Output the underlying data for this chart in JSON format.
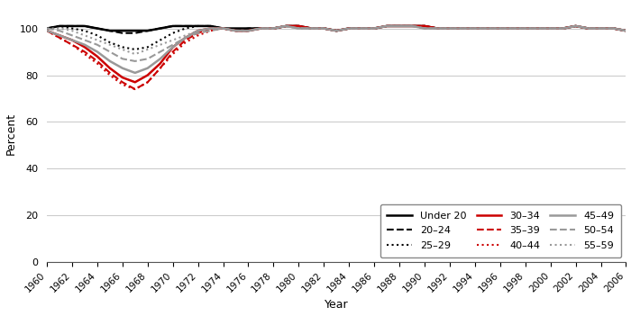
{
  "title": "",
  "ylabel": "Percent",
  "xlabel": "Year",
  "ylim": [
    0,
    110
  ],
  "yticks": [
    0,
    20,
    40,
    60,
    80,
    100
  ],
  "years": [
    1960,
    1961,
    1962,
    1963,
    1964,
    1965,
    1966,
    1967,
    1968,
    1969,
    1970,
    1971,
    1972,
    1973,
    1974,
    1975,
    1976,
    1977,
    1978,
    1979,
    1980,
    1981,
    1982,
    1983,
    1984,
    1985,
    1986,
    1987,
    1988,
    1989,
    1990,
    1991,
    1992,
    1993,
    1994,
    1995,
    1996,
    1997,
    1998,
    1999,
    2000,
    2001,
    2002,
    2003,
    2004,
    2005,
    2006
  ],
  "series": {
    "Under 20": [
      100,
      101,
      101,
      101,
      100,
      99,
      99,
      99,
      99,
      100,
      101,
      101,
      101,
      101,
      100,
      100,
      100,
      100,
      100,
      101,
      101,
      100,
      100,
      99,
      100,
      100,
      100,
      101,
      101,
      101,
      101,
      100,
      100,
      100,
      100,
      100,
      100,
      100,
      100,
      100,
      100,
      100,
      101,
      100,
      100,
      100,
      99
    ],
    "20-24": [
      100,
      101,
      101,
      101,
      100,
      99,
      98,
      98,
      99,
      100,
      101,
      101,
      101,
      101,
      100,
      99,
      100,
      100,
      100,
      101,
      101,
      100,
      100,
      99,
      100,
      100,
      100,
      101,
      101,
      101,
      101,
      100,
      100,
      100,
      100,
      100,
      100,
      100,
      100,
      100,
      100,
      100,
      101,
      100,
      100,
      100,
      99
    ],
    "25-29": [
      100,
      101,
      100,
      99,
      97,
      94,
      92,
      91,
      92,
      95,
      98,
      100,
      101,
      101,
      100,
      99,
      99,
      100,
      100,
      101,
      101,
      100,
      100,
      99,
      100,
      100,
      100,
      101,
      101,
      101,
      101,
      100,
      100,
      100,
      100,
      100,
      100,
      100,
      100,
      100,
      100,
      100,
      101,
      100,
      100,
      100,
      99
    ],
    "30-34": [
      99,
      97,
      95,
      92,
      88,
      83,
      79,
      77,
      80,
      85,
      92,
      96,
      99,
      100,
      100,
      99,
      99,
      100,
      100,
      101,
      101,
      100,
      100,
      99,
      100,
      100,
      100,
      101,
      101,
      101,
      101,
      100,
      100,
      100,
      100,
      100,
      100,
      100,
      100,
      100,
      100,
      100,
      101,
      100,
      100,
      100,
      99
    ],
    "35-39": [
      99,
      96,
      93,
      90,
      86,
      81,
      77,
      74,
      77,
      83,
      90,
      95,
      98,
      100,
      100,
      99,
      99,
      100,
      100,
      101,
      101,
      100,
      100,
      99,
      100,
      100,
      100,
      101,
      101,
      101,
      101,
      100,
      100,
      100,
      100,
      100,
      100,
      100,
      100,
      100,
      100,
      100,
      101,
      100,
      100,
      100,
      99
    ],
    "40-44": [
      99,
      96,
      93,
      89,
      85,
      80,
      76,
      74,
      77,
      83,
      89,
      94,
      97,
      99,
      100,
      99,
      99,
      100,
      100,
      101,
      101,
      100,
      100,
      99,
      100,
      100,
      100,
      101,
      101,
      101,
      101,
      100,
      100,
      100,
      100,
      100,
      100,
      100,
      100,
      100,
      100,
      100,
      101,
      100,
      100,
      100,
      99
    ],
    "45-49": [
      99,
      97,
      95,
      93,
      90,
      86,
      83,
      81,
      83,
      87,
      92,
      96,
      99,
      100,
      100,
      99,
      99,
      100,
      100,
      101,
      100,
      100,
      100,
      99,
      100,
      100,
      100,
      101,
      101,
      101,
      100,
      100,
      100,
      100,
      100,
      100,
      100,
      100,
      100,
      100,
      100,
      100,
      101,
      100,
      100,
      100,
      99
    ],
    "50-54": [
      100,
      99,
      97,
      95,
      93,
      90,
      87,
      86,
      87,
      90,
      93,
      96,
      98,
      99,
      100,
      99,
      99,
      100,
      100,
      101,
      100,
      100,
      100,
      99,
      100,
      100,
      100,
      101,
      101,
      101,
      100,
      100,
      100,
      100,
      100,
      100,
      100,
      100,
      100,
      100,
      100,
      100,
      101,
      100,
      100,
      100,
      99
    ],
    "55-59": [
      100,
      100,
      99,
      97,
      95,
      93,
      91,
      89,
      91,
      93,
      95,
      97,
      99,
      100,
      100,
      99,
      99,
      100,
      100,
      101,
      100,
      100,
      100,
      99,
      100,
      100,
      100,
      101,
      101,
      101,
      100,
      100,
      100,
      100,
      100,
      100,
      100,
      100,
      100,
      100,
      100,
      100,
      101,
      100,
      100,
      100,
      99
    ]
  },
  "line_styles": {
    "Under 20": {
      "color": "#000000",
      "linestyle": "-",
      "linewidth": 1.8
    },
    "20-24": {
      "color": "#000000",
      "linestyle": "--",
      "linewidth": 1.5
    },
    "25-29": {
      "color": "#000000",
      "linestyle": ":",
      "linewidth": 1.5
    },
    "30-34": {
      "color": "#cc0000",
      "linestyle": "-",
      "linewidth": 1.8
    },
    "35-39": {
      "color": "#cc0000",
      "linestyle": "--",
      "linewidth": 1.5
    },
    "40-44": {
      "color": "#cc0000",
      "linestyle": ":",
      "linewidth": 1.5
    },
    "45-49": {
      "color": "#999999",
      "linestyle": "-",
      "linewidth": 1.8
    },
    "50-54": {
      "color": "#999999",
      "linestyle": "--",
      "linewidth": 1.5
    },
    "55-59": {
      "color": "#999999",
      "linestyle": ":",
      "linewidth": 1.5
    }
  },
  "xticks": [
    1960,
    1962,
    1964,
    1966,
    1968,
    1970,
    1972,
    1974,
    1976,
    1978,
    1980,
    1982,
    1984,
    1986,
    1988,
    1990,
    1992,
    1994,
    1996,
    1998,
    2000,
    2002,
    2004,
    2006
  ],
  "legend_rows": [
    [
      "Under 20",
      "20–24",
      "25–29"
    ],
    [
      "30–34",
      "35–39",
      "40–44"
    ],
    [
      "45–49",
      "50–54",
      "55–59"
    ]
  ],
  "legend_keys": [
    [
      "Under 20",
      "20-24",
      "25-29"
    ],
    [
      "30-34",
      "35-39",
      "40-44"
    ],
    [
      "45-49",
      "50-54",
      "55-59"
    ]
  ],
  "background_color": "#ffffff"
}
